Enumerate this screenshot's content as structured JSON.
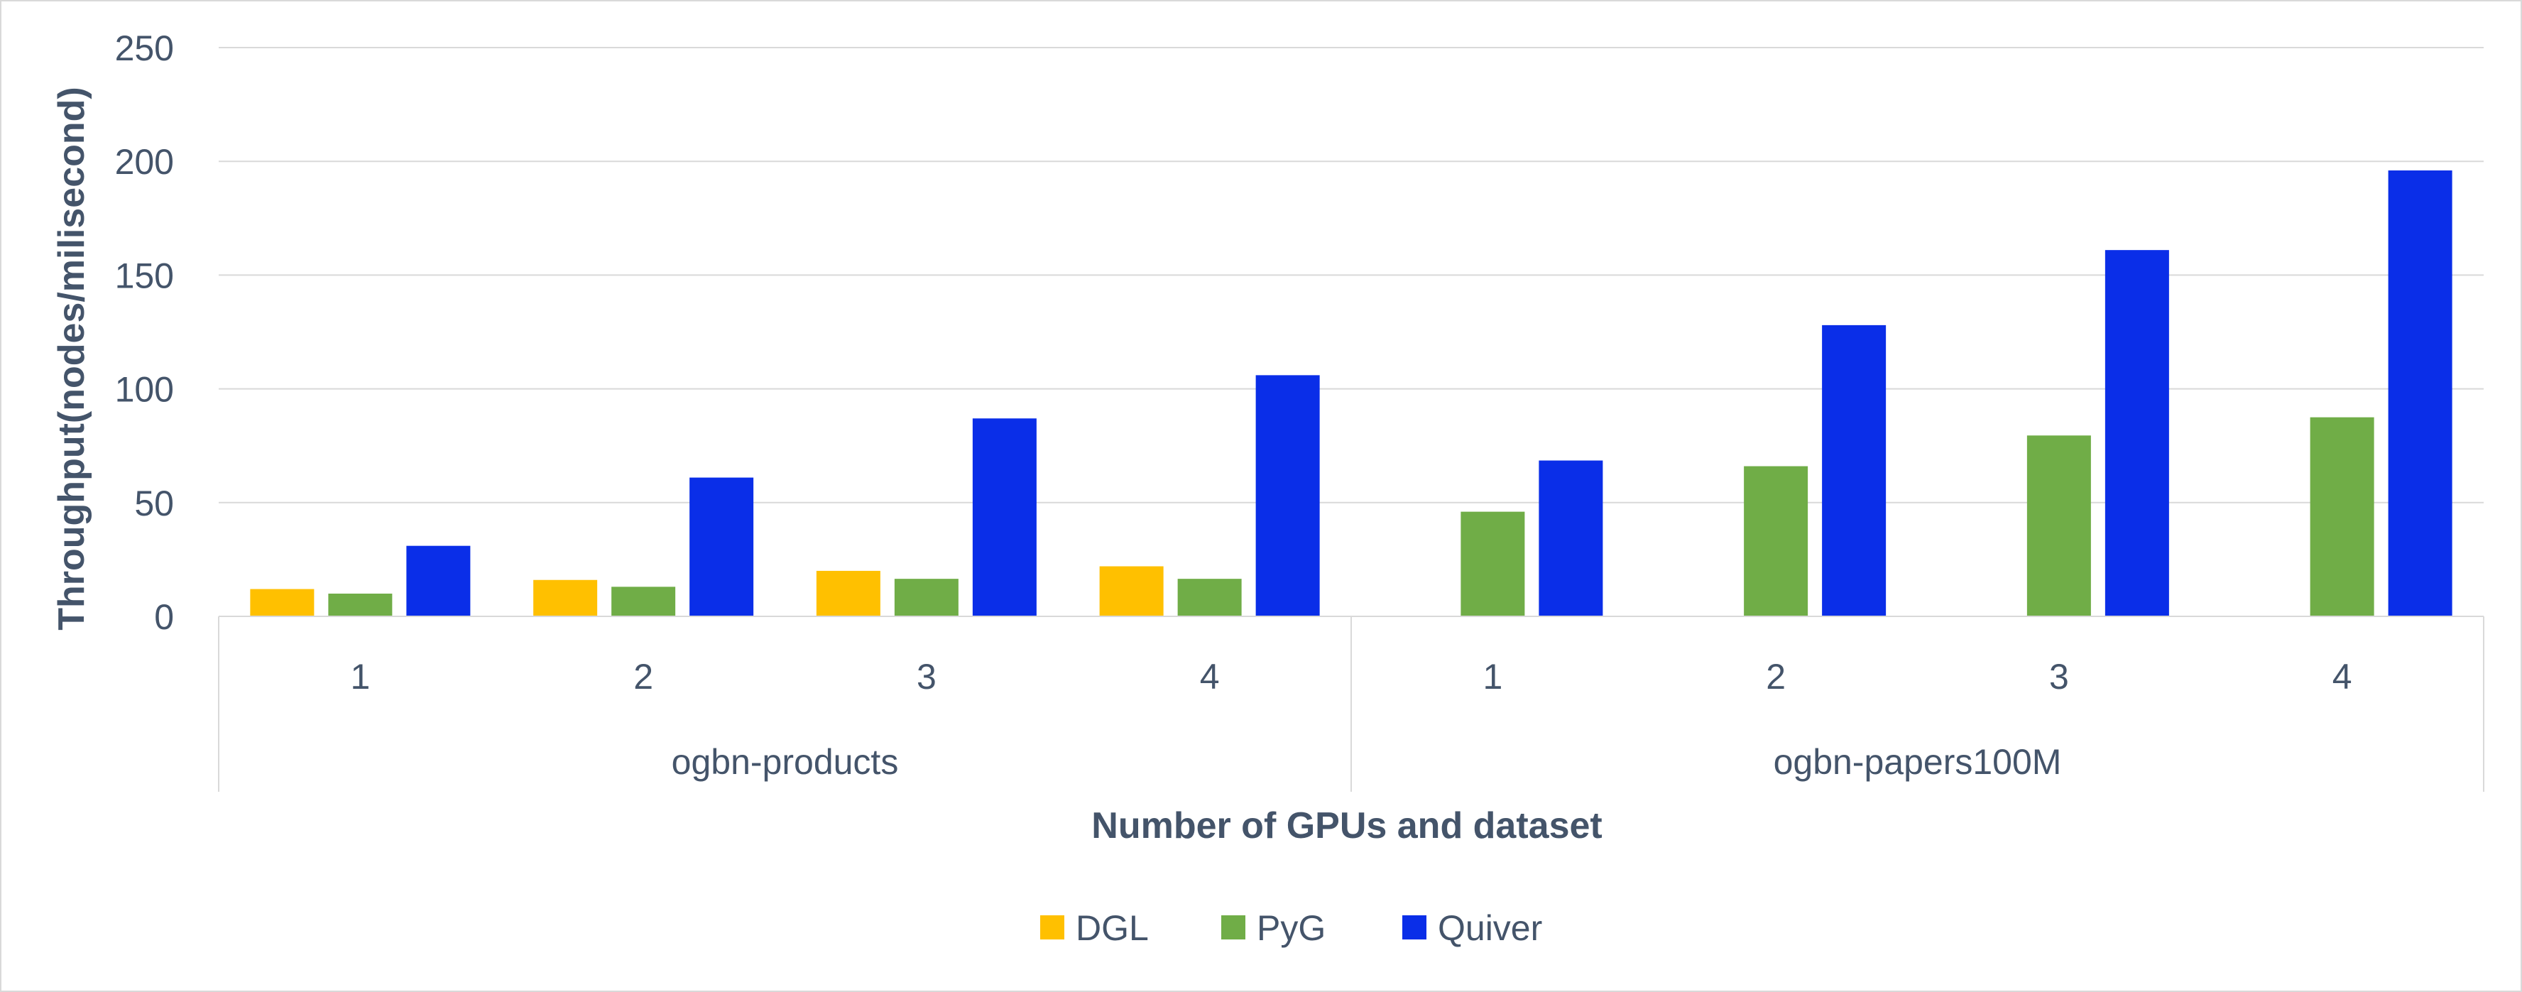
{
  "chart_data": {
    "type": "bar",
    "xlabel": "Number of GPUs and dataset",
    "ylabel": "Throughput(nodes/milisecond)",
    "ylim": [
      0,
      250
    ],
    "yticks": [
      0,
      50,
      100,
      150,
      200,
      250
    ],
    "grid": "horizontal",
    "legend_position": "bottom",
    "groups": [
      {
        "name": "ogbn-products",
        "categories": [
          "1",
          "2",
          "3",
          "4"
        ]
      },
      {
        "name": "ogbn-papers100M",
        "categories": [
          "1",
          "2",
          "3",
          "4"
        ]
      }
    ],
    "series": [
      {
        "name": "DGL",
        "color": "#ffc000",
        "values": [
          12,
          16,
          20,
          22,
          null,
          null,
          null,
          null
        ]
      },
      {
        "name": "PyG",
        "color": "#70ad47",
        "values": [
          10,
          13,
          16.5,
          16.5,
          46,
          66,
          79.5,
          87.5
        ]
      },
      {
        "name": "Quiver",
        "color": "#0a2ee8",
        "values": [
          31,
          61,
          87,
          106,
          68.5,
          128,
          161,
          196
        ]
      }
    ]
  }
}
